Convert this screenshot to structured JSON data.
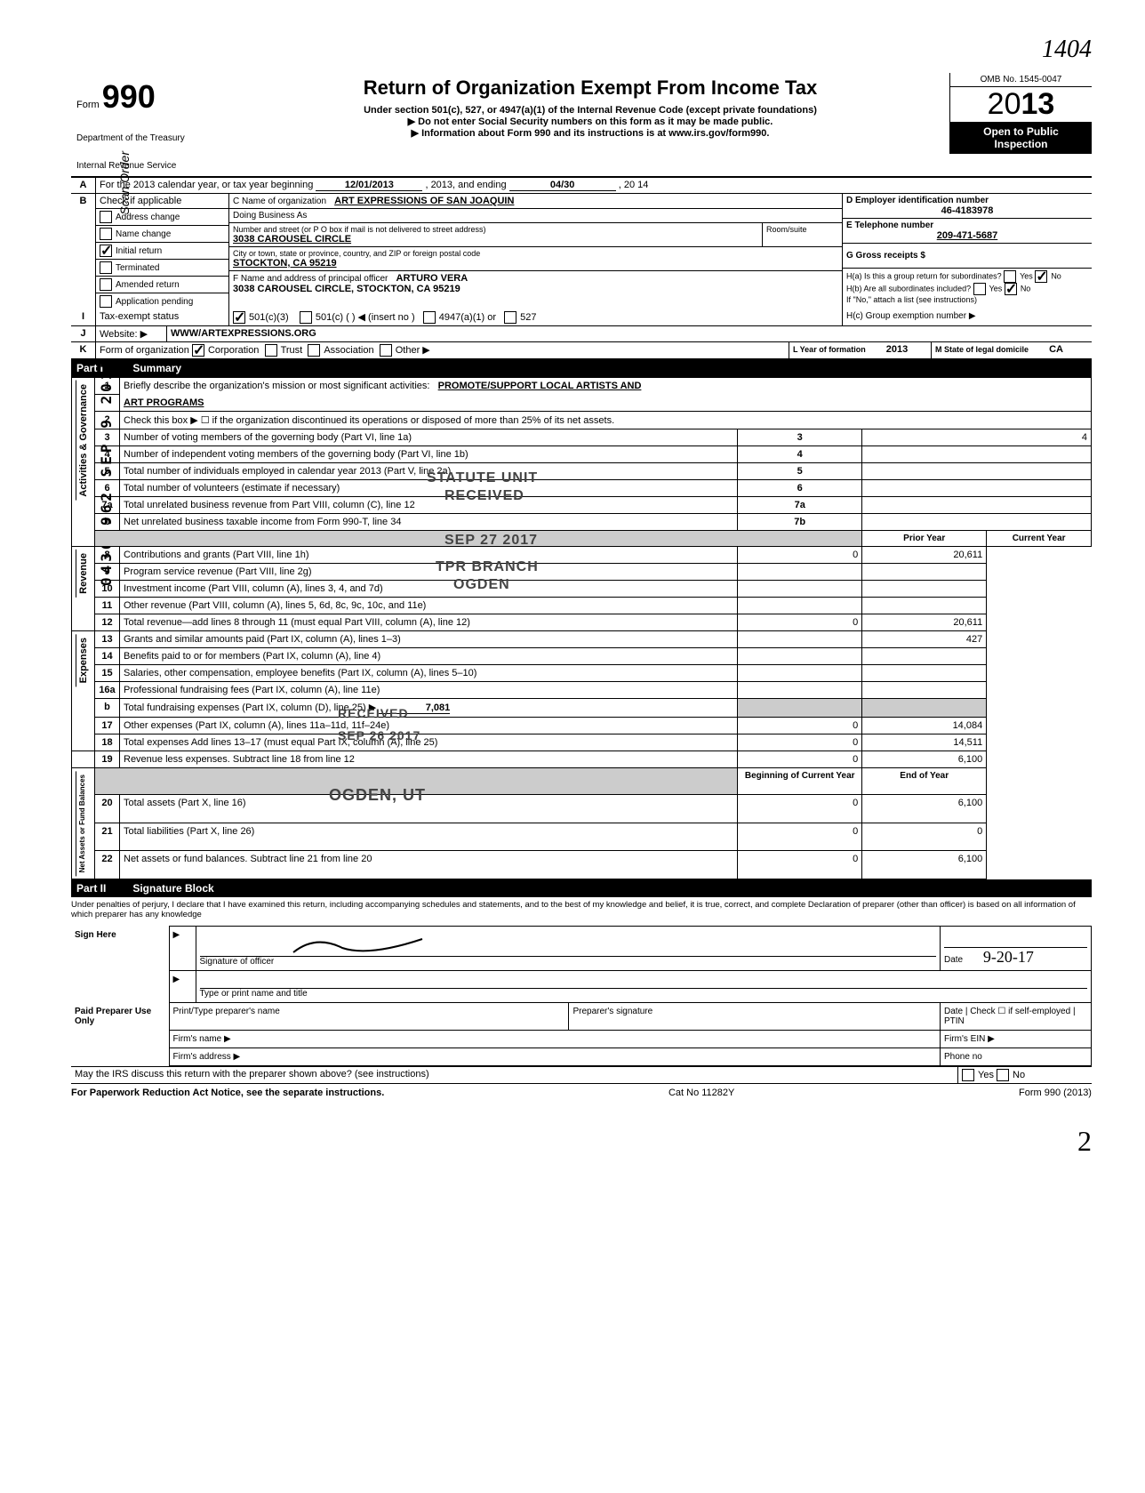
{
  "handwritten_top": "1404",
  "form": {
    "label": "Form",
    "number": "990",
    "dept1": "Department of the Treasury",
    "dept2": "Internal Revenue Service"
  },
  "title": {
    "main": "Return of Organization Exempt From Income Tax",
    "sub1": "Under section 501(c), 527, or 4947(a)(1) of the Internal Revenue Code (except private foundations)",
    "sub2": "Do not enter Social Security numbers on this form as it may be made public.",
    "sub3": "Information about Form 990 and its instructions is at www.irs.gov/form990."
  },
  "rightbox": {
    "omb": "OMB No. 1545-0047",
    "year_prefix": "20",
    "year_suffix": "13",
    "public1": "Open to Public",
    "public2": "Inspection"
  },
  "rowA": {
    "label_a": "A",
    "text1": "For the 2013 calendar year, or tax year beginning",
    "begin_date": "12/01/2013",
    "mid": ", 2013, and ending",
    "end_date": "04/30",
    "end_year": ", 20  14"
  },
  "rowB": {
    "label": "B",
    "text": "Check if applicable",
    "items": [
      "Address change",
      "Name change",
      "Initial return",
      "Terminated",
      "Amended return",
      "Application pending"
    ],
    "checked_index": 2
  },
  "rowC": {
    "label": "C Name of organization",
    "value": "ART EXPRESSIONS OF SAN JOAQUIN",
    "dba_label": "Doing Business As",
    "street_label": "Number and street (or P O  box if mail is not delivered to street address)",
    "room_label": "Room/suite",
    "street": "3038 CAROUSEL CIRCLE",
    "city_label": "City or town, state or province, country, and ZIP or foreign postal code",
    "city": "STOCKTON, CA 95219"
  },
  "rowD": {
    "label": "D Employer identification number",
    "value": "46-4183978"
  },
  "rowE": {
    "label": "E Telephone number",
    "value": "209-471-5687"
  },
  "rowG": {
    "label": "G Gross receipts $"
  },
  "rowF": {
    "label": "F Name and address of principal officer",
    "name": "ARTURO VERA",
    "addr": "3038 CAROUSEL CIRCLE, STOCKTON, CA 95219"
  },
  "rowH": {
    "ha": "H(a) Is this a group return for subordinates?",
    "hb": "H(b) Are all subordinates included?",
    "hb_note": "If \"No,\" attach a list  (see instructions)",
    "hc": "H(c) Group exemption number ▶",
    "yes": "Yes",
    "no": "No"
  },
  "rowI": {
    "label": "I",
    "text": "Tax-exempt status",
    "opts": [
      "501(c)(3)",
      "501(c) (        ) ◀ (insert no )",
      "4947(a)(1) or",
      "527"
    ]
  },
  "rowJ": {
    "label": "J",
    "text": "Website: ▶",
    "value": "WWW/ARTEXPRESSIONS.ORG"
  },
  "rowK": {
    "label": "K",
    "text": "Form of organization",
    "opts": [
      "Corporation",
      "Trust",
      "Association",
      "Other ▶"
    ],
    "year_label": "L Year of formation",
    "year": "2013",
    "state_label": "M State of legal domicile",
    "state": "CA"
  },
  "part1": {
    "label": "Part I",
    "title": "Summary"
  },
  "summary_sections": {
    "s1": "Activities & Governance",
    "s2": "Revenue",
    "s3": "Expenses",
    "s4": "Net Assets or Fund Balances"
  },
  "lines": {
    "l1": {
      "n": "1",
      "t": "Briefly describe the organization's mission or most significant activities:",
      "v": "PROMOTE/SUPPORT LOCAL ARTISTS AND",
      "v2": "ART PROGRAMS"
    },
    "l2": {
      "n": "2",
      "t": "Check this box ▶ ☐ if the organization discontinued its operations or disposed of more than 25% of its net assets."
    },
    "l3": {
      "n": "3",
      "t": "Number of voting members of the governing body (Part VI, line 1a)",
      "tag": "3",
      "cur": "4"
    },
    "l4": {
      "n": "4",
      "t": "Number of independent voting members of the governing body (Part VI, line 1b)",
      "tag": "4"
    },
    "l5": {
      "n": "5",
      "t": "Total number of individuals employed in calendar year 2013 (Part V, line 2a)",
      "tag": "5"
    },
    "l6": {
      "n": "6",
      "t": "Total number of volunteers (estimate if necessary)",
      "tag": "6"
    },
    "l7a": {
      "n": "7a",
      "t": "Total unrelated business revenue from Part VIII, column (C), line 12",
      "tag": "7a"
    },
    "l7b": {
      "n": "b",
      "t": "Net unrelated business taxable income from Form 990-T, line 34",
      "tag": "7b"
    },
    "hdr_prior": "Prior Year",
    "hdr_cur": "Current Year",
    "l8": {
      "n": "8",
      "t": "Contributions and grants (Part VIII, line 1h)",
      "prior": "0",
      "cur": "20,611"
    },
    "l9": {
      "n": "9",
      "t": "Program service revenue (Part VIII, line 2g)"
    },
    "l10": {
      "n": "10",
      "t": "Investment income (Part VIII, column (A), lines 3, 4, and 7d)"
    },
    "l11": {
      "n": "11",
      "t": "Other revenue (Part VIII, column (A), lines 5, 6d, 8c, 9c, 10c, and 11e)"
    },
    "l12": {
      "n": "12",
      "t": "Total revenue—add lines 8 through 11 (must equal Part VIII, column (A), line 12)",
      "prior": "0",
      "cur": "20,611"
    },
    "l13": {
      "n": "13",
      "t": "Grants and similar amounts paid (Part IX, column (A), lines 1–3)",
      "cur": "427"
    },
    "l14": {
      "n": "14",
      "t": "Benefits paid to or for members (Part IX, column (A), line 4)"
    },
    "l15": {
      "n": "15",
      "t": "Salaries, other compensation, employee benefits (Part IX, column (A), lines 5–10)"
    },
    "l16a": {
      "n": "16a",
      "t": "Professional fundraising fees (Part IX, column (A),  line 11e)"
    },
    "l16b": {
      "n": "b",
      "t": "Total fundraising expenses (Part IX, column (D), line 25) ▶",
      "val": "7,081"
    },
    "l17": {
      "n": "17",
      "t": "Other expenses (Part IX, column (A), lines 11a–11d, 11f–24e)",
      "prior": "0",
      "cur": "14,084"
    },
    "l18": {
      "n": "18",
      "t": "Total expenses  Add lines 13–17 (must equal Part IX, column (A), line 25)",
      "prior": "0",
      "cur": "14,511"
    },
    "l19": {
      "n": "19",
      "t": "Revenue less expenses. Subtract line 18 from line 12",
      "prior": "0",
      "cur": "6,100"
    },
    "hdr_begin": "Beginning of Current Year",
    "hdr_end": "End of Year",
    "l20": {
      "n": "20",
      "t": "Total assets (Part X, line 16)",
      "prior": "0",
      "cur": "6,100"
    },
    "l21": {
      "n": "21",
      "t": "Total liabilities (Part X, line 26)",
      "prior": "0",
      "cur": "0"
    },
    "l22": {
      "n": "22",
      "t": "Net assets or fund balances. Subtract line 21 from line 20",
      "prior": "0",
      "cur": "6,100"
    }
  },
  "stamps": {
    "s1": "STATUTE UNIT",
    "s2": "RECEIVED",
    "s3": "SEP 27 2017",
    "s4": "TPR BRANCH",
    "s5": "OGDEN",
    "r1": "RECEIVED",
    "r2": "SEP 26 2017",
    "r3": "OGDEN, UT",
    "side_num": "04360962 SEP 9 2017",
    "side_text": "Scan Order"
  },
  "part2": {
    "label": "Part II",
    "title": "Signature Block"
  },
  "perjury": "Under penalties of perjury, I declare that I have examined this return, including accompanying schedules and statements, and to the best of my knowledge and belief, it is true, correct, and complete  Declaration of preparer (other than officer) is based on all information of which preparer has any knowledge",
  "sign": {
    "here": "Sign Here",
    "sig_label": "Signature of officer",
    "date_label": "Date",
    "date_val": "9-20-17",
    "type_label": "Type or print name and title"
  },
  "paid": {
    "label": "Paid Preparer Use Only",
    "name_label": "Print/Type preparer's name",
    "sig_label": "Preparer's signature",
    "date_label": "Date",
    "check_label": "Check ☐ if self-employed",
    "ptin": "PTIN",
    "firm_name": "Firm's name    ▶",
    "firm_ein": "Firm's EIN ▶",
    "firm_addr": "Firm's address ▶",
    "phone": "Phone no"
  },
  "irs_discuss": "May the IRS discuss this return with the preparer shown above? (see instructions)",
  "footer": {
    "left": "For Paperwork Reduction Act Notice, see the separate instructions.",
    "mid": "Cat  No  11282Y",
    "right": "Form 990 (2013)"
  },
  "colors": {
    "black": "#000000",
    "grey": "#cccccc"
  },
  "page_num": "2"
}
